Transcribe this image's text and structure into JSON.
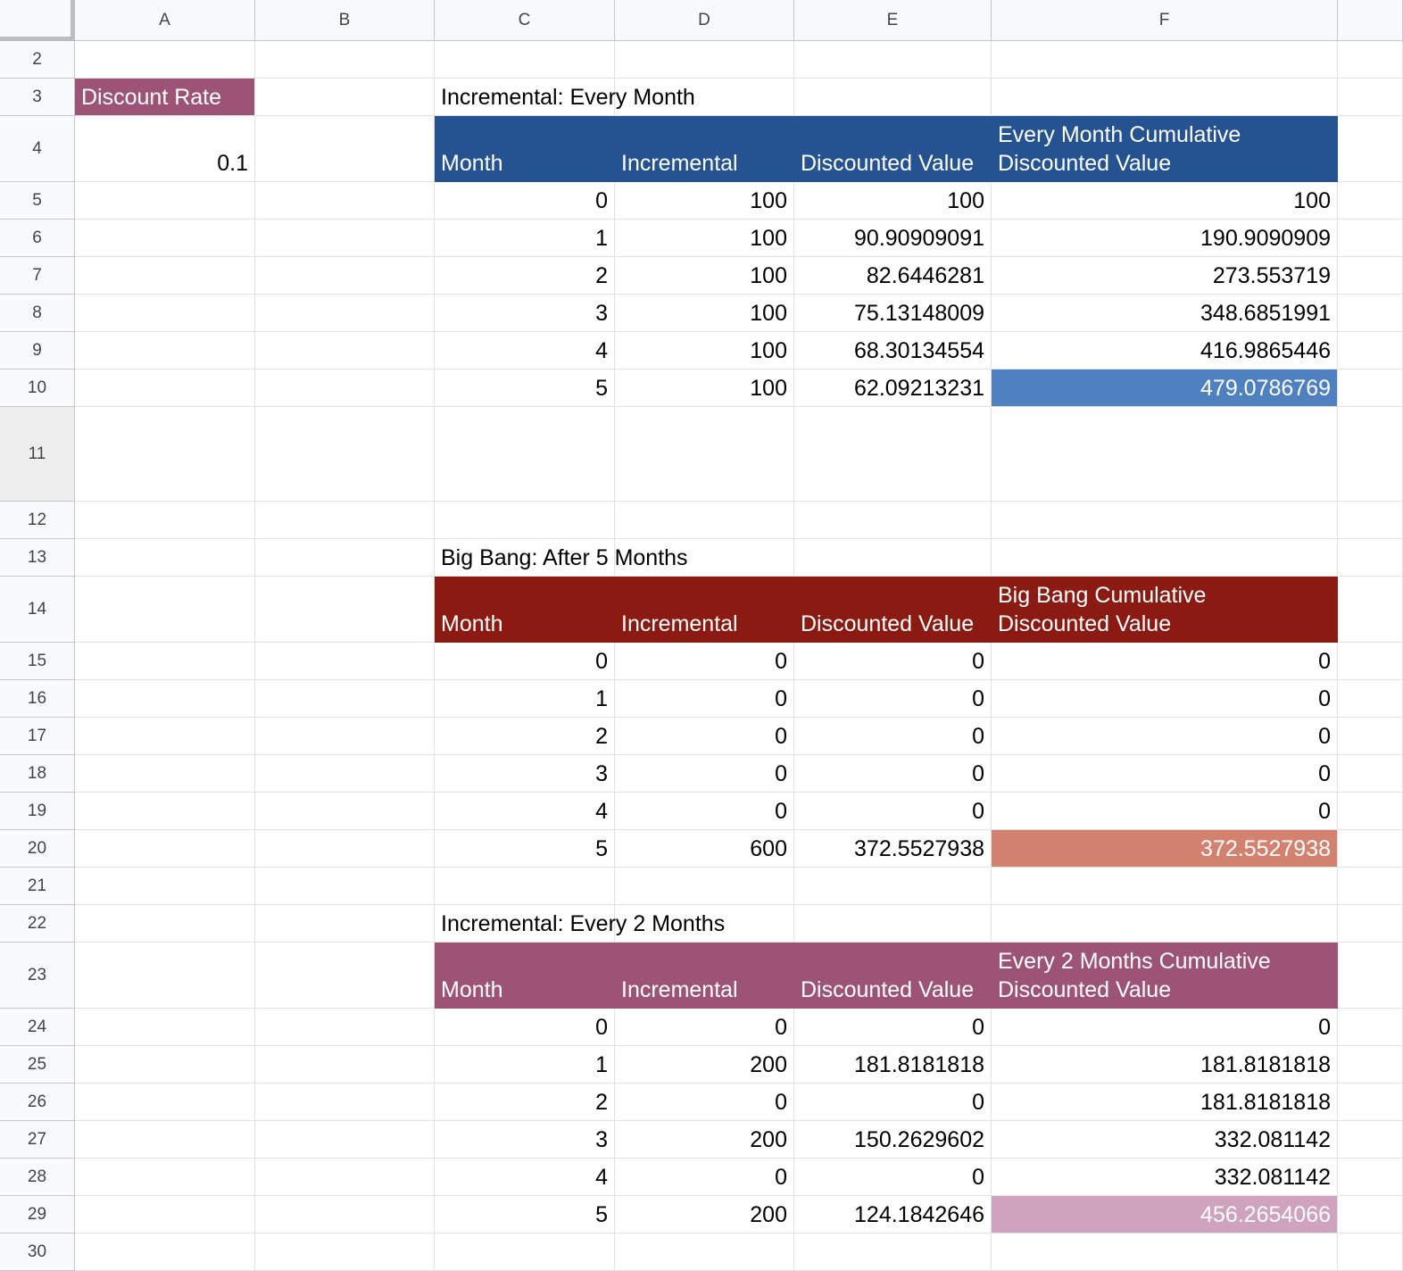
{
  "columns": [
    "A",
    "B",
    "C",
    "D",
    "E",
    "F"
  ],
  "rows": [
    "2",
    "3",
    "4",
    "5",
    "6",
    "7",
    "8",
    "9",
    "10",
    "11",
    "12",
    "13",
    "14",
    "15",
    "16",
    "17",
    "18",
    "19",
    "20",
    "21",
    "22",
    "23",
    "24",
    "25",
    "26",
    "27",
    "28",
    "29",
    "30"
  ],
  "discount": {
    "label": "Discount Rate",
    "value": "0.1"
  },
  "colors": {
    "blue_header": "#255290",
    "blue_highlight": "#4f80c0",
    "red_header": "#8b1a12",
    "red_highlight": "#d48270",
    "pink_header": "#9d5376",
    "pink_highlight": "#cfa3bd",
    "discount_label": "#9d5376"
  },
  "tables": [
    {
      "title": "Incremental: Every Month",
      "headers": [
        "Month",
        "Incremental",
        "Discounted Value",
        "Every Month Cumulative",
        "Discounted Value"
      ],
      "rows": [
        [
          "0",
          "100",
          "100",
          "100"
        ],
        [
          "1",
          "100",
          "90.90909091",
          "190.9090909"
        ],
        [
          "2",
          "100",
          "82.6446281",
          "273.553719"
        ],
        [
          "3",
          "100",
          "75.13148009",
          "348.6851991"
        ],
        [
          "4",
          "100",
          "68.30134554",
          "416.9865446"
        ],
        [
          "5",
          "100",
          "62.09213231",
          "479.0786769"
        ]
      ]
    },
    {
      "title": "Big Bang: After 5 Months",
      "headers": [
        "Month",
        "Incremental",
        "Discounted Value",
        "Big Bang Cumulative",
        "Discounted Value"
      ],
      "rows": [
        [
          "0",
          "0",
          "0",
          "0"
        ],
        [
          "1",
          "0",
          "0",
          "0"
        ],
        [
          "2",
          "0",
          "0",
          "0"
        ],
        [
          "3",
          "0",
          "0",
          "0"
        ],
        [
          "4",
          "0",
          "0",
          "0"
        ],
        [
          "5",
          "600",
          "372.5527938",
          "372.5527938"
        ]
      ]
    },
    {
      "title": "Incremental: Every 2 Months",
      "headers": [
        "Month",
        "Incremental",
        "Discounted Value",
        "Every 2 Months Cumulative",
        "Discounted Value"
      ],
      "rows": [
        [
          "0",
          "0",
          "0",
          "0"
        ],
        [
          "1",
          "200",
          "181.8181818",
          "181.8181818"
        ],
        [
          "2",
          "0",
          "0",
          "181.8181818"
        ],
        [
          "3",
          "200",
          "150.2629602",
          "332.081142"
        ],
        [
          "4",
          "0",
          "0",
          "332.081142"
        ],
        [
          "5",
          "200",
          "124.1842646",
          "456.2654066"
        ]
      ]
    }
  ]
}
